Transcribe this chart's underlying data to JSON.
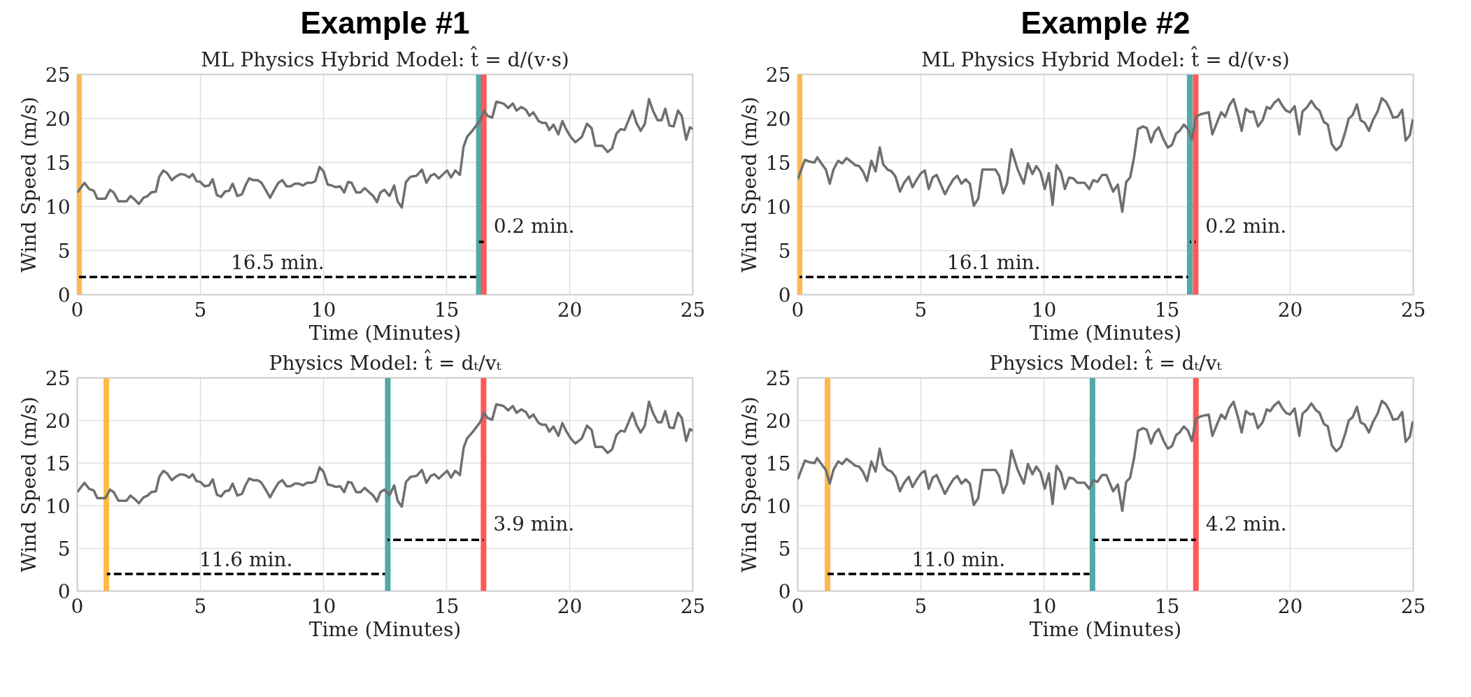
{
  "chart_data": [
    {
      "type": "line",
      "title": "Example #1",
      "subtitle": "ML Physics Hybrid Model: t̂ = d/(v·s)",
      "xlabel": "Time (Minutes)",
      "ylabel": "Wind Speed (m/s)",
      "xlim": [
        0,
        25
      ],
      "ylim": [
        0,
        25
      ],
      "xticks": [
        0,
        5,
        10,
        15,
        20,
        25
      ],
      "yticks": [
        0,
        5,
        10,
        15,
        20,
        25
      ],
      "grid": true,
      "series": [
        {
          "color": "#6f6f6f",
          "x": [
            0,
            0.29,
            0.48,
            0.67,
            0.81,
            1.14,
            1.33,
            1.48,
            1.67,
            2.0,
            2.16,
            2.33,
            2.5,
            2.69,
            2.86,
            3.0,
            3.19,
            3.33,
            3.5,
            3.65,
            3.84,
            4.0,
            4.19,
            4.38,
            4.54,
            4.69,
            4.84,
            5.0,
            5.17,
            5.35,
            5.5,
            5.67,
            5.84,
            6.0,
            6.17,
            6.31,
            6.5,
            6.69,
            6.83,
            6.98,
            7.14,
            7.33,
            7.48,
            7.65,
            7.83,
            8.0,
            8.17,
            8.33,
            8.5,
            8.67,
            8.83,
            8.99,
            9.17,
            9.33,
            9.52,
            9.67,
            9.84,
            10.0,
            10.17,
            10.33,
            10.5,
            10.67,
            10.84,
            11.0,
            11.14,
            11.33,
            11.5,
            11.67,
            11.86,
            12.02,
            12.17,
            12.31,
            12.48,
            12.68,
            12.87,
            13.01,
            13.18,
            13.35,
            13.54,
            13.78,
            14.0,
            14.18,
            14.35,
            14.51,
            14.68,
            15.02,
            15.18,
            15.35,
            15.54,
            15.69,
            15.83,
            16.07,
            16.36,
            16.53,
            16.66,
            16.85,
            17.02,
            17.31,
            17.5,
            17.69,
            17.84,
            18.03,
            18.22,
            18.36,
            18.52,
            18.74,
            18.88,
            19.03,
            19.17,
            19.34,
            19.54,
            19.7,
            19.87,
            20.04,
            20.23,
            20.49,
            20.7,
            20.89,
            21.04,
            21.33,
            21.54,
            21.72,
            21.9,
            22.07,
            22.23,
            22.55,
            22.71,
            22.88,
            23.05,
            23.22,
            23.38,
            23.57,
            23.73,
            23.88,
            24.05,
            24.22,
            24.4,
            24.55,
            24.73,
            24.88,
            25.0
          ],
          "values": [
            11.6,
            12.7,
            12.0,
            11.8,
            10.9,
            10.9,
            11.9,
            11.6,
            10.6,
            10.6,
            11.2,
            10.8,
            10.3,
            11.0,
            11.2,
            11.6,
            11.7,
            13.4,
            14.1,
            13.8,
            13.0,
            13.4,
            13.7,
            13.6,
            13.3,
            13.7,
            12.9,
            12.8,
            12.3,
            12.4,
            13.1,
            11.3,
            11.1,
            11.7,
            11.8,
            12.6,
            11.2,
            11.4,
            12.4,
            13.2,
            13.0,
            13.0,
            12.7,
            11.9,
            11.0,
            11.9,
            12.7,
            13.0,
            12.3,
            12.3,
            12.6,
            12.6,
            12.4,
            12.7,
            12.7,
            12.9,
            14.5,
            14.0,
            12.5,
            12.4,
            12.2,
            12.3,
            11.6,
            12.8,
            12.7,
            11.6,
            11.6,
            12.1,
            11.6,
            11.2,
            10.5,
            11.6,
            11.9,
            11.2,
            12.4,
            10.6,
            9.9,
            12.8,
            13.4,
            13.5,
            14.2,
            12.7,
            13.5,
            13.7,
            13.2,
            14.1,
            13.3,
            14.1,
            13.6,
            16.8,
            17.9,
            18.7,
            19.8,
            20.9,
            20.3,
            20.1,
            21.9,
            21.7,
            21.2,
            21.7,
            20.9,
            21.3,
            21.0,
            20.3,
            20.7,
            19.7,
            19.5,
            19.5,
            18.7,
            19.3,
            18.2,
            19.7,
            18.7,
            17.9,
            17.3,
            17.9,
            19.4,
            18.9,
            16.9,
            16.9,
            16.2,
            16.6,
            18.3,
            18.8,
            18.7,
            20.9,
            19.5,
            18.6,
            19.4,
            22.2,
            20.9,
            19.8,
            19.8,
            21.1,
            19.2,
            19.1,
            20.9,
            20.3,
            17.6,
            19.0,
            18.8
          ]
        },
        {
          "color": "#000000",
          "line_style": "dashed",
          "x": [
            0.07,
            16.2
          ],
          "values": [
            2,
            2
          ]
        },
        {
          "color": "#000000",
          "line_style": "dashed",
          "x": [
            16.31,
            16.51
          ],
          "values": [
            6,
            6
          ]
        }
      ],
      "ref_lines": [
        {
          "axis": "x",
          "value": 0.07,
          "color": "#ffb53f"
        },
        {
          "axis": "x",
          "value": 16.31,
          "color": "#48a4a3"
        },
        {
          "axis": "x",
          "value": 16.51,
          "color": "#ff4f4f"
        }
      ],
      "annotations": [
        "16.5 min.",
        "0.2 min."
      ]
    },
    {
      "type": "line",
      "title": "Example #2",
      "subtitle": "ML Physics Hybrid Model: t̂ = d/(v·s)",
      "xlabel": "Time (Minutes)",
      "ylabel": "Wind Speed (m/s)",
      "xlim": [
        0,
        25
      ],
      "ylim": [
        0,
        25
      ],
      "xticks": [
        0,
        5,
        10,
        15,
        20,
        25
      ],
      "yticks": [
        0,
        5,
        10,
        15,
        20,
        25
      ],
      "grid": true,
      "series": [
        {
          "color": "#6f6f6f",
          "x": [
            0,
            0.29,
            0.48,
            0.68,
            0.79,
            0.96,
            1.14,
            1.3,
            1.45,
            1.64,
            1.81,
            1.98,
            2.17,
            2.33,
            2.49,
            2.65,
            2.81,
            2.99,
            3.16,
            3.33,
            3.47,
            3.65,
            3.81,
            3.97,
            4.15,
            4.32,
            4.51,
            4.66,
            4.84,
            5.01,
            5.16,
            5.32,
            5.48,
            5.64,
            5.81,
            5.98,
            6.15,
            6.32,
            6.48,
            6.65,
            6.82,
            6.99,
            7.15,
            7.33,
            7.5,
            7.71,
            8.03,
            8.18,
            8.34,
            8.5,
            8.68,
            8.92,
            9.18,
            9.35,
            9.53,
            9.69,
            9.86,
            10.03,
            10.2,
            10.35,
            10.51,
            10.69,
            10.85,
            11.02,
            11.19,
            11.36,
            11.65,
            11.84,
            12.0,
            12.17,
            12.36,
            12.54,
            12.81,
            13.0,
            13.18,
            13.34,
            13.5,
            13.66,
            13.82,
            14.02,
            14.18,
            14.35,
            14.5,
            14.66,
            14.86,
            15.03,
            15.2,
            15.37,
            15.51,
            15.68,
            15.85,
            16.01,
            16.17,
            16.38,
            16.69,
            16.84,
            17.05,
            17.2,
            17.36,
            17.53,
            17.7,
            17.87,
            18.03,
            18.2,
            18.38,
            18.51,
            18.69,
            18.88,
            19.05,
            19.19,
            19.36,
            19.53,
            19.67,
            19.83,
            19.99,
            20.18,
            20.37,
            20.5,
            20.69,
            20.86,
            21.05,
            21.19,
            21.37,
            21.53,
            21.69,
            21.87,
            22.06,
            22.24,
            22.38,
            22.54,
            22.71,
            22.86,
            23.03,
            23.2,
            23.36,
            23.55,
            23.72,
            23.89,
            24.04,
            24.18,
            24.37,
            24.55,
            24.69,
            24.86,
            24.98
          ],
          "values": [
            13.1,
            15.3,
            15.1,
            15.0,
            15.6,
            14.9,
            14.2,
            12.6,
            14.2,
            15.2,
            14.9,
            15.5,
            15.1,
            14.7,
            14.6,
            14.0,
            12.9,
            15.2,
            14.0,
            16.7,
            14.8,
            14.2,
            14.0,
            13.4,
            11.7,
            12.7,
            13.4,
            12.2,
            13.1,
            13.8,
            14.1,
            12.0,
            13.3,
            13.6,
            12.5,
            11.4,
            12.3,
            13.1,
            13.5,
            12.6,
            13.1,
            12.6,
            10.1,
            10.9,
            14.2,
            14.2,
            14.2,
            13.5,
            11.5,
            12.6,
            16.5,
            14.3,
            12.6,
            14.9,
            13.7,
            14.6,
            13.9,
            12.0,
            13.8,
            10.2,
            14.7,
            13.9,
            12.0,
            13.3,
            13.2,
            12.7,
            12.7,
            12.0,
            13.0,
            12.8,
            13.6,
            13.6,
            11.7,
            12.5,
            9.4,
            12.8,
            13.3,
            15.6,
            18.8,
            19.1,
            18.9,
            17.3,
            18.5,
            19.0,
            17.6,
            16.7,
            17.0,
            18.3,
            18.6,
            19.3,
            18.8,
            17.6,
            20.2,
            20.5,
            20.7,
            18.2,
            19.7,
            20.7,
            20.2,
            21.5,
            22.2,
            20.5,
            18.6,
            21.1,
            20.7,
            20.8,
            19.1,
            19.8,
            21.3,
            21.1,
            21.8,
            22.2,
            21.5,
            20.9,
            20.7,
            21.4,
            18.2,
            20.8,
            21.3,
            22.0,
            21.2,
            20.9,
            19.6,
            19.3,
            17.1,
            16.4,
            16.9,
            18.5,
            20.0,
            20.4,
            21.6,
            19.8,
            19.5,
            18.6,
            19.8,
            20.8,
            22.3,
            21.9,
            21.1,
            20.1,
            20.2,
            21.0,
            17.5,
            18.1,
            19.9
          ]
        },
        {
          "color": "#000000",
          "line_style": "dashed",
          "x": [
            0.07,
            15.85
          ],
          "values": [
            2,
            2
          ]
        },
        {
          "color": "#000000",
          "line_style": "dashed",
          "x": [
            15.92,
            16.16
          ],
          "values": [
            6,
            6
          ]
        }
      ],
      "ref_lines": [
        {
          "axis": "x",
          "value": 0.07,
          "color": "#ffb53f"
        },
        {
          "axis": "x",
          "value": 15.92,
          "color": "#48a4a3"
        },
        {
          "axis": "x",
          "value": 16.16,
          "color": "#ff4f4f"
        }
      ],
      "annotations": [
        "16.1 min.",
        "0.2 min."
      ]
    },
    {
      "type": "line",
      "title": "Physics Model: t̂ = dₜ/vₜ",
      "xlabel": "Time (Minutes)",
      "ylabel": "Wind Speed (m/s)",
      "xlim": [
        0,
        25
      ],
      "ylim": [
        0,
        25
      ],
      "xticks": [
        0,
        5,
        10,
        15,
        20,
        25
      ],
      "yticks": [
        0,
        5,
        10,
        15,
        20,
        25
      ],
      "grid": true,
      "series": [
        {
          "color": "#6f6f6f",
          "x": [
            0,
            0.29,
            0.48,
            0.67,
            0.81,
            1.14,
            1.33,
            1.48,
            1.67,
            2.0,
            2.16,
            2.33,
            2.5,
            2.69,
            2.86,
            3.0,
            3.19,
            3.33,
            3.5,
            3.65,
            3.84,
            4.0,
            4.19,
            4.38,
            4.54,
            4.69,
            4.84,
            5.0,
            5.17,
            5.35,
            5.5,
            5.67,
            5.84,
            6.0,
            6.17,
            6.31,
            6.5,
            6.69,
            6.83,
            6.98,
            7.14,
            7.33,
            7.48,
            7.65,
            7.83,
            8.0,
            8.17,
            8.33,
            8.5,
            8.67,
            8.83,
            8.99,
            9.17,
            9.33,
            9.52,
            9.67,
            9.84,
            10.0,
            10.17,
            10.33,
            10.5,
            10.67,
            10.84,
            11.0,
            11.14,
            11.33,
            11.5,
            11.67,
            11.86,
            12.02,
            12.17,
            12.31,
            12.48,
            12.68,
            12.87,
            13.01,
            13.18,
            13.35,
            13.54,
            13.78,
            14.0,
            14.18,
            14.35,
            14.51,
            14.68,
            15.02,
            15.18,
            15.35,
            15.54,
            15.69,
            15.83,
            16.07,
            16.36,
            16.53,
            16.66,
            16.85,
            17.02,
            17.31,
            17.5,
            17.69,
            17.84,
            18.03,
            18.22,
            18.36,
            18.52,
            18.74,
            18.88,
            19.03,
            19.17,
            19.34,
            19.54,
            19.7,
            19.87,
            20.04,
            20.23,
            20.49,
            20.7,
            20.89,
            21.04,
            21.33,
            21.54,
            21.72,
            21.9,
            22.07,
            22.23,
            22.55,
            22.71,
            22.88,
            23.05,
            23.22,
            23.38,
            23.57,
            23.73,
            23.88,
            24.05,
            24.22,
            24.4,
            24.55,
            24.73,
            24.88,
            25.0
          ],
          "values": [
            11.6,
            12.7,
            12.0,
            11.8,
            10.9,
            10.9,
            11.9,
            11.6,
            10.6,
            10.6,
            11.2,
            10.8,
            10.3,
            11.0,
            11.2,
            11.6,
            11.7,
            13.4,
            14.1,
            13.8,
            13.0,
            13.4,
            13.7,
            13.6,
            13.3,
            13.7,
            12.9,
            12.8,
            12.3,
            12.4,
            13.1,
            11.3,
            11.1,
            11.7,
            11.8,
            12.6,
            11.2,
            11.4,
            12.4,
            13.2,
            13.0,
            13.0,
            12.7,
            11.9,
            11.0,
            11.9,
            12.7,
            13.0,
            12.3,
            12.3,
            12.6,
            12.6,
            12.4,
            12.7,
            12.7,
            12.9,
            14.5,
            14.0,
            12.5,
            12.4,
            12.2,
            12.3,
            11.6,
            12.8,
            12.7,
            11.6,
            11.6,
            12.1,
            11.6,
            11.2,
            10.5,
            11.6,
            11.9,
            11.2,
            12.4,
            10.6,
            9.9,
            12.8,
            13.4,
            13.5,
            14.2,
            12.7,
            13.5,
            13.7,
            13.2,
            14.1,
            13.3,
            14.1,
            13.6,
            16.8,
            17.9,
            18.7,
            19.8,
            20.9,
            20.3,
            20.1,
            21.9,
            21.7,
            21.2,
            21.7,
            20.9,
            21.3,
            21.0,
            20.3,
            20.7,
            19.7,
            19.5,
            19.5,
            18.7,
            19.3,
            18.2,
            19.7,
            18.7,
            17.9,
            17.3,
            17.9,
            19.4,
            18.9,
            16.9,
            16.9,
            16.2,
            16.6,
            18.3,
            18.8,
            18.7,
            20.9,
            19.5,
            18.6,
            19.4,
            22.2,
            20.9,
            19.8,
            19.8,
            21.1,
            19.2,
            19.1,
            20.9,
            20.3,
            17.6,
            19.0,
            18.8
          ]
        },
        {
          "color": "#000000",
          "line_style": "dashed",
          "x": [
            1.2,
            12.5
          ],
          "values": [
            2,
            2
          ]
        },
        {
          "color": "#000000",
          "line_style": "dashed",
          "x": [
            12.6,
            16.5
          ],
          "values": [
            6,
            6
          ]
        }
      ],
      "ref_lines": [
        {
          "axis": "x",
          "value": 1.18,
          "color": "#ffb53f"
        },
        {
          "axis": "x",
          "value": 12.61,
          "color": "#48a4a3"
        },
        {
          "axis": "x",
          "value": 16.5,
          "color": "#ff4f4f"
        }
      ],
      "annotations": [
        "11.6 min.",
        "3.9 min."
      ]
    },
    {
      "type": "line",
      "title": "Physics Model: t̂ = dₜ/vₜ",
      "xlabel": "Time (Minutes)",
      "ylabel": "Wind Speed (m/s)",
      "xlim": [
        0,
        25
      ],
      "ylim": [
        0,
        25
      ],
      "xticks": [
        0,
        5,
        10,
        15,
        20,
        25
      ],
      "yticks": [
        0,
        5,
        10,
        15,
        20,
        25
      ],
      "grid": true,
      "series": [
        {
          "color": "#6f6f6f",
          "x": [
            0,
            0.29,
            0.48,
            0.68,
            0.79,
            0.96,
            1.14,
            1.3,
            1.45,
            1.64,
            1.81,
            1.98,
            2.17,
            2.33,
            2.49,
            2.65,
            2.81,
            2.99,
            3.16,
            3.33,
            3.47,
            3.65,
            3.81,
            3.97,
            4.15,
            4.32,
            4.51,
            4.66,
            4.84,
            5.01,
            5.16,
            5.32,
            5.48,
            5.64,
            5.81,
            5.98,
            6.15,
            6.32,
            6.48,
            6.65,
            6.82,
            6.99,
            7.15,
            7.33,
            7.5,
            7.71,
            8.03,
            8.18,
            8.34,
            8.5,
            8.68,
            8.92,
            9.18,
            9.35,
            9.53,
            9.69,
            9.86,
            10.03,
            10.2,
            10.35,
            10.51,
            10.69,
            10.85,
            11.02,
            11.19,
            11.36,
            11.65,
            11.84,
            12.0,
            12.17,
            12.36,
            12.54,
            12.81,
            13.0,
            13.18,
            13.34,
            13.5,
            13.66,
            13.82,
            14.02,
            14.18,
            14.35,
            14.5,
            14.66,
            14.86,
            15.03,
            15.2,
            15.37,
            15.51,
            15.68,
            15.85,
            16.01,
            16.17,
            16.38,
            16.69,
            16.84,
            17.05,
            17.2,
            17.36,
            17.53,
            17.7,
            17.87,
            18.03,
            18.2,
            18.38,
            18.51,
            18.69,
            18.88,
            19.05,
            19.19,
            19.36,
            19.53,
            19.67,
            19.83,
            19.99,
            20.18,
            20.37,
            20.5,
            20.69,
            20.86,
            21.05,
            21.19,
            21.37,
            21.53,
            21.69,
            21.87,
            22.06,
            22.24,
            22.38,
            22.54,
            22.71,
            22.86,
            23.03,
            23.2,
            23.36,
            23.55,
            23.72,
            23.89,
            24.04,
            24.18,
            24.37,
            24.55,
            24.69,
            24.86,
            24.98
          ],
          "values": [
            13.1,
            15.3,
            15.1,
            15.0,
            15.6,
            14.9,
            14.2,
            12.6,
            14.2,
            15.2,
            14.9,
            15.5,
            15.1,
            14.7,
            14.6,
            14.0,
            12.9,
            15.2,
            14.0,
            16.7,
            14.8,
            14.2,
            14.0,
            13.4,
            11.7,
            12.7,
            13.4,
            12.2,
            13.1,
            13.8,
            14.1,
            12.0,
            13.3,
            13.6,
            12.5,
            11.4,
            12.3,
            13.1,
            13.5,
            12.6,
            13.1,
            12.6,
            10.1,
            10.9,
            14.2,
            14.2,
            14.2,
            13.5,
            11.5,
            12.6,
            16.5,
            14.3,
            12.6,
            14.9,
            13.7,
            14.6,
            13.9,
            12.0,
            13.8,
            10.2,
            14.7,
            13.9,
            12.0,
            13.3,
            13.2,
            12.7,
            12.7,
            12.0,
            13.0,
            12.8,
            13.6,
            13.6,
            11.7,
            12.5,
            9.4,
            12.8,
            13.3,
            15.6,
            18.8,
            19.1,
            18.9,
            17.3,
            18.5,
            19.0,
            17.6,
            16.7,
            17.0,
            18.3,
            18.6,
            19.3,
            18.8,
            17.6,
            20.2,
            20.5,
            20.7,
            18.2,
            19.7,
            20.7,
            20.2,
            21.5,
            22.2,
            20.5,
            18.6,
            21.1,
            20.7,
            20.8,
            19.1,
            19.8,
            21.3,
            21.1,
            21.8,
            22.2,
            21.5,
            20.9,
            20.7,
            21.4,
            18.2,
            20.8,
            21.3,
            22.0,
            21.2,
            20.9,
            19.6,
            19.3,
            17.1,
            16.4,
            16.9,
            18.5,
            20.0,
            20.4,
            21.6,
            19.8,
            19.5,
            18.6,
            19.8,
            20.8,
            22.3,
            21.9,
            21.1,
            20.1,
            20.2,
            21.0,
            17.5,
            18.1,
            19.9
          ]
        },
        {
          "color": "#000000",
          "line_style": "dashed",
          "x": [
            1.21,
            11.85
          ],
          "values": [
            2,
            2
          ]
        },
        {
          "color": "#000000",
          "line_style": "dashed",
          "x": [
            12.0,
            16.17
          ],
          "values": [
            6,
            6
          ]
        }
      ],
      "ref_lines": [
        {
          "axis": "x",
          "value": 1.21,
          "color": "#ffb53f"
        },
        {
          "axis": "x",
          "value": 11.97,
          "color": "#48a4a3"
        },
        {
          "axis": "x",
          "value": 16.17,
          "color": "#ff4f4f"
        }
      ],
      "annotations": [
        "11.0 min.",
        "4.2 min."
      ]
    }
  ]
}
